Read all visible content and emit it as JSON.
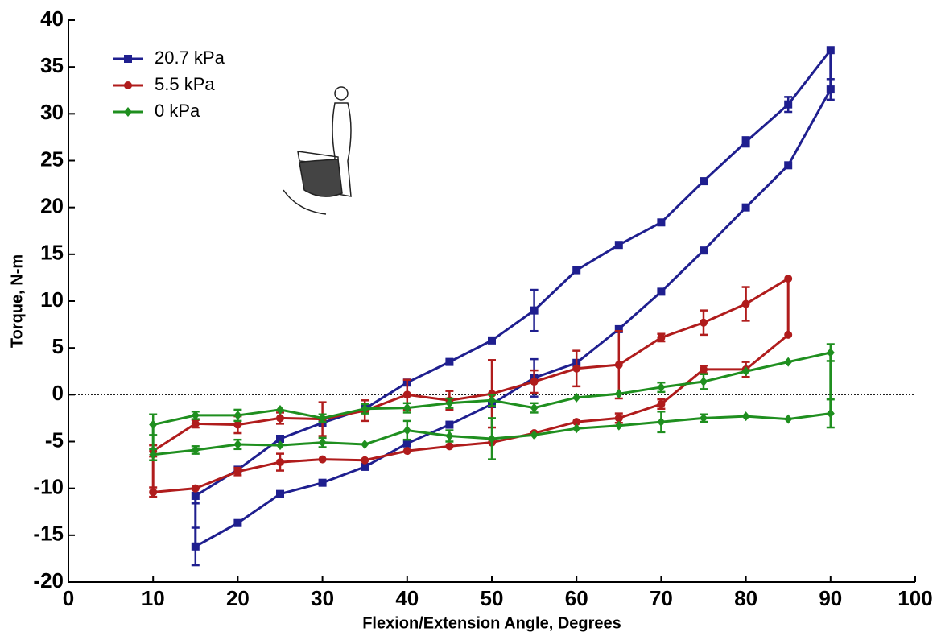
{
  "chart_data": {
    "type": "line",
    "xlabel": "Flexion/Extension Angle, Degrees",
    "ylabel": "Torque, N-m",
    "xlim": [
      0,
      100
    ],
    "ylim": [
      -20,
      40
    ],
    "xticks": [
      0,
      10,
      20,
      30,
      40,
      50,
      60,
      70,
      80,
      90,
      100
    ],
    "yticks": [
      -20,
      -15,
      -10,
      -5,
      0,
      5,
      10,
      15,
      20,
      25,
      30,
      35,
      40
    ],
    "zero_line": true,
    "legend": "upper left",
    "series": [
      {
        "name": "20.7 kPa",
        "color": "#1f1f8f",
        "marker": "square",
        "x": [
          15,
          20,
          25,
          30,
          35,
          40,
          45,
          50,
          55,
          60,
          65,
          70,
          75,
          80,
          85,
          90
        ],
        "branches": [
          {
            "values": [
              -16.2,
              -13.7,
              -10.6,
              -9.4,
              -7.7,
              -5.2,
              -3.2,
              -1,
              1.8,
              3.4,
              7,
              11,
              15.4,
              20,
              24.5,
              32.6
            ],
            "errors": [
              2,
              null,
              null,
              null,
              null,
              null,
              null,
              null,
              2,
              null,
              null,
              null,
              null,
              null,
              null,
              1.1
            ]
          },
          {
            "values": [
              -10.8,
              -8,
              -4.7,
              -3,
              -1.5,
              1.3,
              3.5,
              5.8,
              9,
              13.3,
              16,
              18.4,
              22.8,
              27,
              31,
              36.8
            ],
            "errors": [
              0.8,
              null,
              null,
              null,
              null,
              null,
              null,
              null,
              2.2,
              null,
              null,
              null,
              null,
              0.5,
              0.8,
              null
            ]
          }
        ]
      },
      {
        "name": "5.5 kPa",
        "color": "#b01c1c",
        "marker": "circle",
        "x": [
          10,
          15,
          20,
          25,
          30,
          35,
          40,
          45,
          50,
          55,
          60,
          65,
          70,
          75,
          80,
          85
        ],
        "branches": [
          {
            "values": [
              -10.4,
              -10,
              -8.2,
              -7.2,
              -6.9,
              -7,
              -6,
              -5.5,
              -5.1,
              -4.1,
              -2.9,
              -2.5,
              -1,
              2.7,
              2.7,
              6.4
            ],
            "errors": [
              0.5,
              null,
              0.4,
              0.9,
              null,
              null,
              null,
              null,
              null,
              null,
              null,
              0.5,
              0.5,
              0.4,
              0.8,
              null
            ]
          },
          {
            "values": [
              -6,
              -3.1,
              -3.2,
              -2.5,
              -2.6,
              -1.7,
              0,
              -0.6,
              0.1,
              1.4,
              2.8,
              3.2,
              6.1,
              7.7,
              9.7,
              12.4
            ],
            "errors": [
              0.6,
              0.4,
              0.9,
              0.6,
              1.8,
              1.1,
              1.6,
              1,
              3.6,
              1.2,
              1.9,
              3.6,
              0.4,
              1.3,
              1.8,
              null
            ]
          }
        ]
      },
      {
        "name": "0 kPa",
        "color": "#1f8f1f",
        "marker": "diamond",
        "x": [
          10,
          15,
          20,
          25,
          30,
          35,
          40,
          45,
          50,
          55,
          60,
          65,
          70,
          75,
          80,
          85,
          90
        ],
        "branches": [
          {
            "values": [
              -6.4,
              -5.9,
              -5.3,
              -5.4,
              -5.1,
              -5.3,
              -3.8,
              -4.4,
              -4.7,
              -4.3,
              -3.6,
              -3.3,
              -2.9,
              -2.5,
              -2.3,
              -2.6,
              -2
            ],
            "errors": [
              0.6,
              0.4,
              0.5,
              null,
              0.5,
              null,
              1,
              0.6,
              2.2,
              null,
              null,
              null,
              1.1,
              0.4,
              null,
              null,
              1.5
            ]
          },
          {
            "values": [
              -3.2,
              -2.2,
              -2.2,
              -1.6,
              -2.5,
              -1.5,
              -1.4,
              -0.9,
              -0.6,
              -1.4,
              -0.3,
              0.1,
              0.8,
              1.4,
              2.5,
              3.5,
              4.5
            ],
            "errors": [
              1.1,
              0.4,
              0.6,
              null,
              0.4,
              0.5,
              0.5,
              0.5,
              0.6,
              0.5,
              null,
              null,
              0.5,
              0.8,
              null,
              null,
              0.9
            ]
          }
        ]
      }
    ]
  }
}
